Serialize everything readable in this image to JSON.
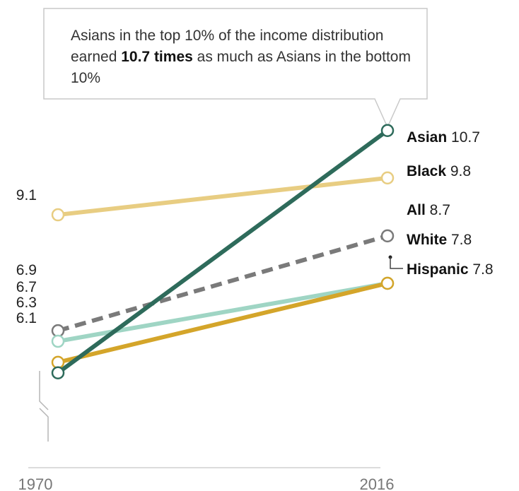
{
  "callout": {
    "text_before": "Asians in the top 10% of the income distribution earned ",
    "text_bold": "10.7 times",
    "text_after": " as much as Asians in the bottom 10%"
  },
  "chart_data": {
    "type": "line",
    "x": [
      "1970",
      "2016"
    ],
    "ylim": [
      4.3,
      11.3
    ],
    "grid": false,
    "start_labels": [
      "9.1",
      "6.9",
      "6.7",
      "6.3",
      "6.1"
    ],
    "series": [
      {
        "name": "Black",
        "values": [
          9.1,
          9.8
        ],
        "end_label": "9.8",
        "color": "#e8cd82",
        "style": "solid"
      },
      {
        "name": "All",
        "values": [
          6.9,
          8.7
        ],
        "end_label": "8.7",
        "color": "#7a7a7a",
        "style": "dashed"
      },
      {
        "name": "Hispanic",
        "values": [
          6.7,
          7.8
        ],
        "end_label": "7.8",
        "color": "#9fd5c4",
        "style": "solid"
      },
      {
        "name": "White",
        "values": [
          6.3,
          7.8
        ],
        "end_label": "7.8",
        "color": "#d4a52a",
        "style": "solid"
      },
      {
        "name": "Asian",
        "values": [
          6.1,
          10.7
        ],
        "end_label": "10.7",
        "color": "#2e6b5b",
        "style": "solid"
      }
    ]
  }
}
